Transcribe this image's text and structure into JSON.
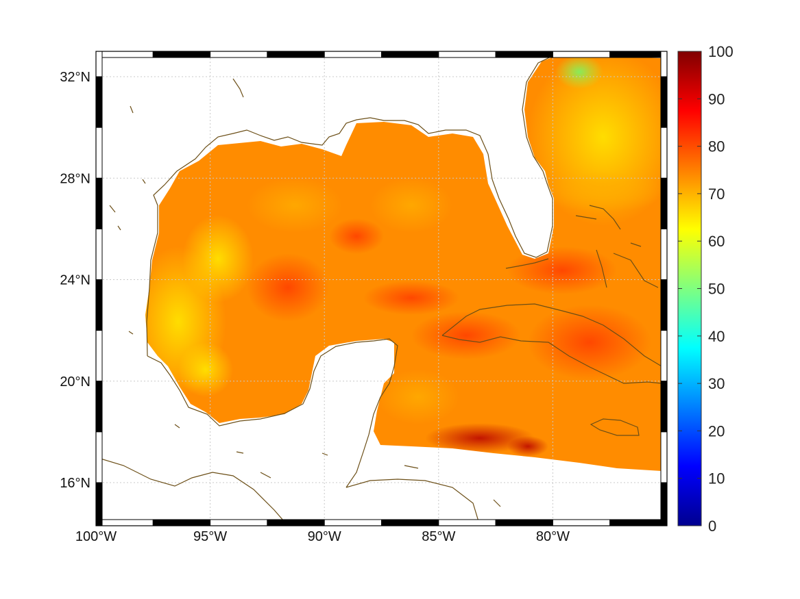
{
  "map": {
    "lon_range": [
      -100,
      -75
    ],
    "lat_range": [
      14.3,
      33
    ],
    "lon_ticks": [
      {
        "lon": -100,
        "label": "100°W"
      },
      {
        "lon": -95,
        "label": "95°W"
      },
      {
        "lon": -90,
        "label": "90°W"
      },
      {
        "lon": -85,
        "label": "85°W"
      },
      {
        "lon": -80,
        "label": "80°W"
      }
    ],
    "lat_ticks": [
      {
        "lat": 32,
        "label": "32°N"
      },
      {
        "lat": 28,
        "label": "28°N"
      },
      {
        "lat": 24,
        "label": "24°N"
      },
      {
        "lat": 20,
        "label": "20°N"
      },
      {
        "lat": 16,
        "label": "16°N"
      }
    ],
    "coastline_color": "#6b4e16",
    "grid": true
  },
  "colorbar": {
    "min": 0,
    "max": 100,
    "colormap": "jet",
    "ticks": [
      "0",
      "10",
      "20",
      "30",
      "40",
      "50",
      "60",
      "70",
      "80",
      "90",
      "100"
    ]
  }
}
